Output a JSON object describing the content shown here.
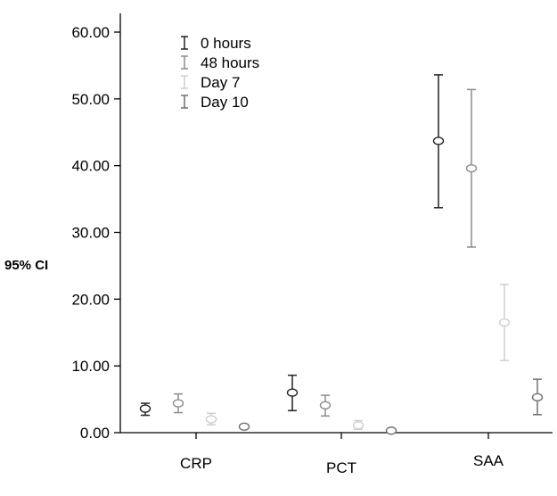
{
  "chart_data": {
    "type": "errorbar",
    "ylabel": "95%  CI",
    "ylim": [
      0,
      60
    ],
    "yticks": [
      "0.00",
      "10.00",
      "20.00",
      "30.00",
      "40.00",
      "50.00",
      "60.00"
    ],
    "categories": [
      "CRP",
      "PCT",
      "SAA"
    ],
    "legend_position": "top-left",
    "series": [
      {
        "name": "0 hours",
        "color": "#222222",
        "points": [
          {
            "mean": 3.6,
            "low": 2.6,
            "high": 4.4
          },
          {
            "mean": 6.0,
            "low": 3.3,
            "high": 8.6
          },
          {
            "mean": 43.7,
            "low": 33.7,
            "high": 53.6
          }
        ]
      },
      {
        "name": "48 hours",
        "color": "#8c8c8c",
        "points": [
          {
            "mean": 4.4,
            "low": 3.0,
            "high": 5.8
          },
          {
            "mean": 4.1,
            "low": 2.5,
            "high": 5.6
          },
          {
            "mean": 39.6,
            "low": 27.8,
            "high": 51.4
          }
        ]
      },
      {
        "name": "Day 7",
        "color": "#cfcfcf",
        "points": [
          {
            "mean": 2.0,
            "low": 1.2,
            "high": 2.9
          },
          {
            "mean": 1.1,
            "low": 0.5,
            "high": 1.8
          },
          {
            "mean": 16.5,
            "low": 10.8,
            "high": 22.2
          }
        ]
      },
      {
        "name": "Day 10",
        "color": "#707070",
        "points": [
          {
            "mean": 0.9,
            "low": 0.6,
            "high": 1.2
          },
          {
            "mean": 0.3,
            "low": 0.1,
            "high": 0.5
          },
          {
            "mean": 5.3,
            "low": 2.7,
            "high": 8.0
          }
        ]
      }
    ]
  }
}
